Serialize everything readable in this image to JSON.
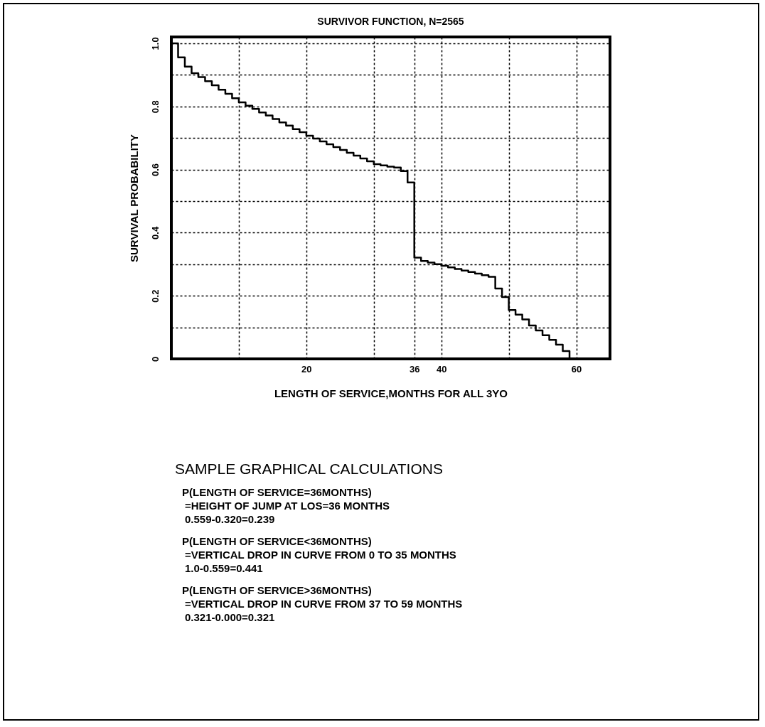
{
  "chart_data": {
    "type": "step",
    "title": "SURVIVOR FUNCTION, N=2565",
    "xlabel": "LENGTH OF SERVICE,MONTHS FOR ALL 3YO",
    "ylabel": "SURVIVAL PROBABILITY",
    "x": [
      0,
      1,
      2,
      3,
      4,
      5,
      6,
      7,
      8,
      9,
      10,
      11,
      12,
      13,
      14,
      15,
      16,
      17,
      18,
      19,
      20,
      21,
      22,
      23,
      24,
      25,
      26,
      27,
      28,
      29,
      30,
      31,
      32,
      33,
      34,
      35,
      36,
      37,
      38,
      39,
      40,
      41,
      42,
      43,
      44,
      45,
      46,
      47,
      48,
      49,
      50,
      51,
      52,
      53,
      54,
      55,
      56,
      57,
      58,
      59
    ],
    "series": [
      {
        "color": "#000000",
        "values": [
          1.0,
          0.955,
          0.926,
          0.905,
          0.893,
          0.88,
          0.867,
          0.853,
          0.84,
          0.826,
          0.813,
          0.802,
          0.792,
          0.781,
          0.771,
          0.76,
          0.749,
          0.739,
          0.728,
          0.718,
          0.707,
          0.698,
          0.689,
          0.68,
          0.671,
          0.662,
          0.653,
          0.644,
          0.635,
          0.626,
          0.617,
          0.613,
          0.609,
          0.606,
          0.595,
          0.559,
          0.321,
          0.31,
          0.305,
          0.3,
          0.295,
          0.29,
          0.285,
          0.28,
          0.275,
          0.27,
          0.265,
          0.26,
          0.223,
          0.196,
          0.155,
          0.14,
          0.125,
          0.106,
          0.09,
          0.075,
          0.06,
          0.045,
          0.025,
          0.0
        ]
      }
    ],
    "xlim": [
      0,
      65
    ],
    "xticks": [
      {
        "value": 10,
        "label": null
      },
      20,
      {
        "value": 30,
        "label": null
      },
      36,
      40,
      {
        "value": 50,
        "label": null
      },
      60
    ],
    "ylim": [
      0,
      1.02
    ],
    "yticks": [
      0,
      {
        "value": 0.1,
        "label": null
      },
      0.2,
      {
        "value": 0.3,
        "label": null
      },
      0.4,
      {
        "value": 0.5,
        "label": null
      },
      0.6,
      {
        "value": 0.7,
        "label": null
      },
      0.8,
      {
        "value": 0.9,
        "label": null
      },
      {
        "value": 1,
        "label": "1.0"
      }
    ],
    "grid": true,
    "marker": "none",
    "line_style": "solid",
    "annotations": [
      "SAMPLE GRAPHICAL CALCULATIONS",
      "P(LENGTH OF SERVICE=36MONTHS)",
      "=HEIGHT OF JUMP AT LOS=36 MONTHS",
      "0.559-0.320=0.239",
      "P(LENGTH OF SERVICE<36MONTHS)",
      "=VERTICAL DROP IN CURVE FROM 0 TO 35 MONTHS",
      "1.0-0.559=0.441",
      "P(LENGTH OF SERVICE>36MONTHS)",
      "=VERTICAL DROP IN CURVE FROM 37 TO 59 MONTHS",
      "0.321-0.000=0.321"
    ]
  }
}
